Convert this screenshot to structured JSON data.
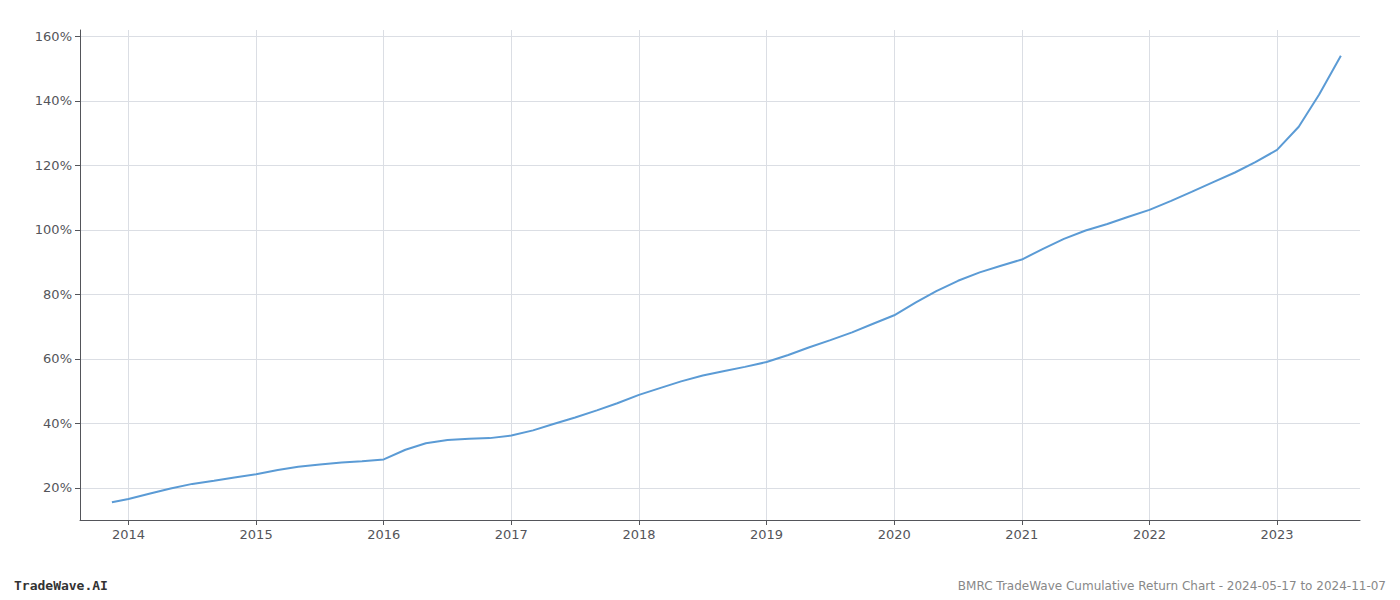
{
  "chart_data": {
    "type": "line",
    "annotations": [
      "TradeWave.AI",
      "BMRC TradeWave Cumulative Return Chart - 2024-05-17 to 2024-11-07"
    ],
    "color": "#5b9bd5",
    "grid": true,
    "xlim": [
      2013.62,
      2023.65
    ],
    "ylim": [
      0.1,
      1.62
    ],
    "xticks": [
      2014,
      2015,
      2016,
      2017,
      2018,
      2019,
      2020,
      2021,
      2022,
      2023
    ],
    "yticks": [
      {
        "value": 0.2,
        "label": "20%"
      },
      {
        "value": 0.4,
        "label": "40%"
      },
      {
        "value": 0.6,
        "label": "60%"
      },
      {
        "value": 0.8,
        "label": "80%"
      },
      {
        "value": 1.0,
        "label": "100%"
      },
      {
        "value": 1.2,
        "label": "120%"
      },
      {
        "value": 1.4,
        "label": "140%"
      },
      {
        "value": 1.6,
        "label": "160%"
      }
    ],
    "x": [
      2013.87,
      2014.0,
      2014.17,
      2014.33,
      2014.5,
      2014.67,
      2014.83,
      2015.0,
      2015.17,
      2015.33,
      2015.5,
      2015.67,
      2015.83,
      2016.0,
      2016.17,
      2016.33,
      2016.5,
      2016.67,
      2016.83,
      2017.0,
      2017.17,
      2017.33,
      2017.5,
      2017.67,
      2017.83,
      2018.0,
      2018.17,
      2018.33,
      2018.5,
      2018.67,
      2018.83,
      2019.0,
      2019.17,
      2019.33,
      2019.5,
      2019.67,
      2019.83,
      2020.0,
      2020.17,
      2020.33,
      2020.5,
      2020.67,
      2020.83,
      2021.0,
      2021.17,
      2021.33,
      2021.5,
      2021.67,
      2021.83,
      2022.0,
      2022.17,
      2022.33,
      2022.5,
      2022.67,
      2022.83,
      2023.0,
      2023.17,
      2023.33,
      2023.5
    ],
    "values": [
      0.155,
      0.165,
      0.182,
      0.198,
      0.212,
      0.222,
      0.232,
      0.242,
      0.255,
      0.265,
      0.272,
      0.278,
      0.282,
      0.288,
      0.318,
      0.338,
      0.348,
      0.352,
      0.354,
      0.362,
      0.378,
      0.398,
      0.418,
      0.44,
      0.462,
      0.488,
      0.51,
      0.53,
      0.548,
      0.562,
      0.575,
      0.59,
      0.612,
      0.635,
      0.658,
      0.682,
      0.708,
      0.735,
      0.775,
      0.81,
      0.842,
      0.868,
      0.888,
      0.908,
      0.942,
      0.972,
      0.998,
      1.018,
      1.04,
      1.062,
      1.09,
      1.118,
      1.148,
      1.178,
      1.21,
      1.248,
      1.32,
      1.42,
      1.54
    ]
  }
}
